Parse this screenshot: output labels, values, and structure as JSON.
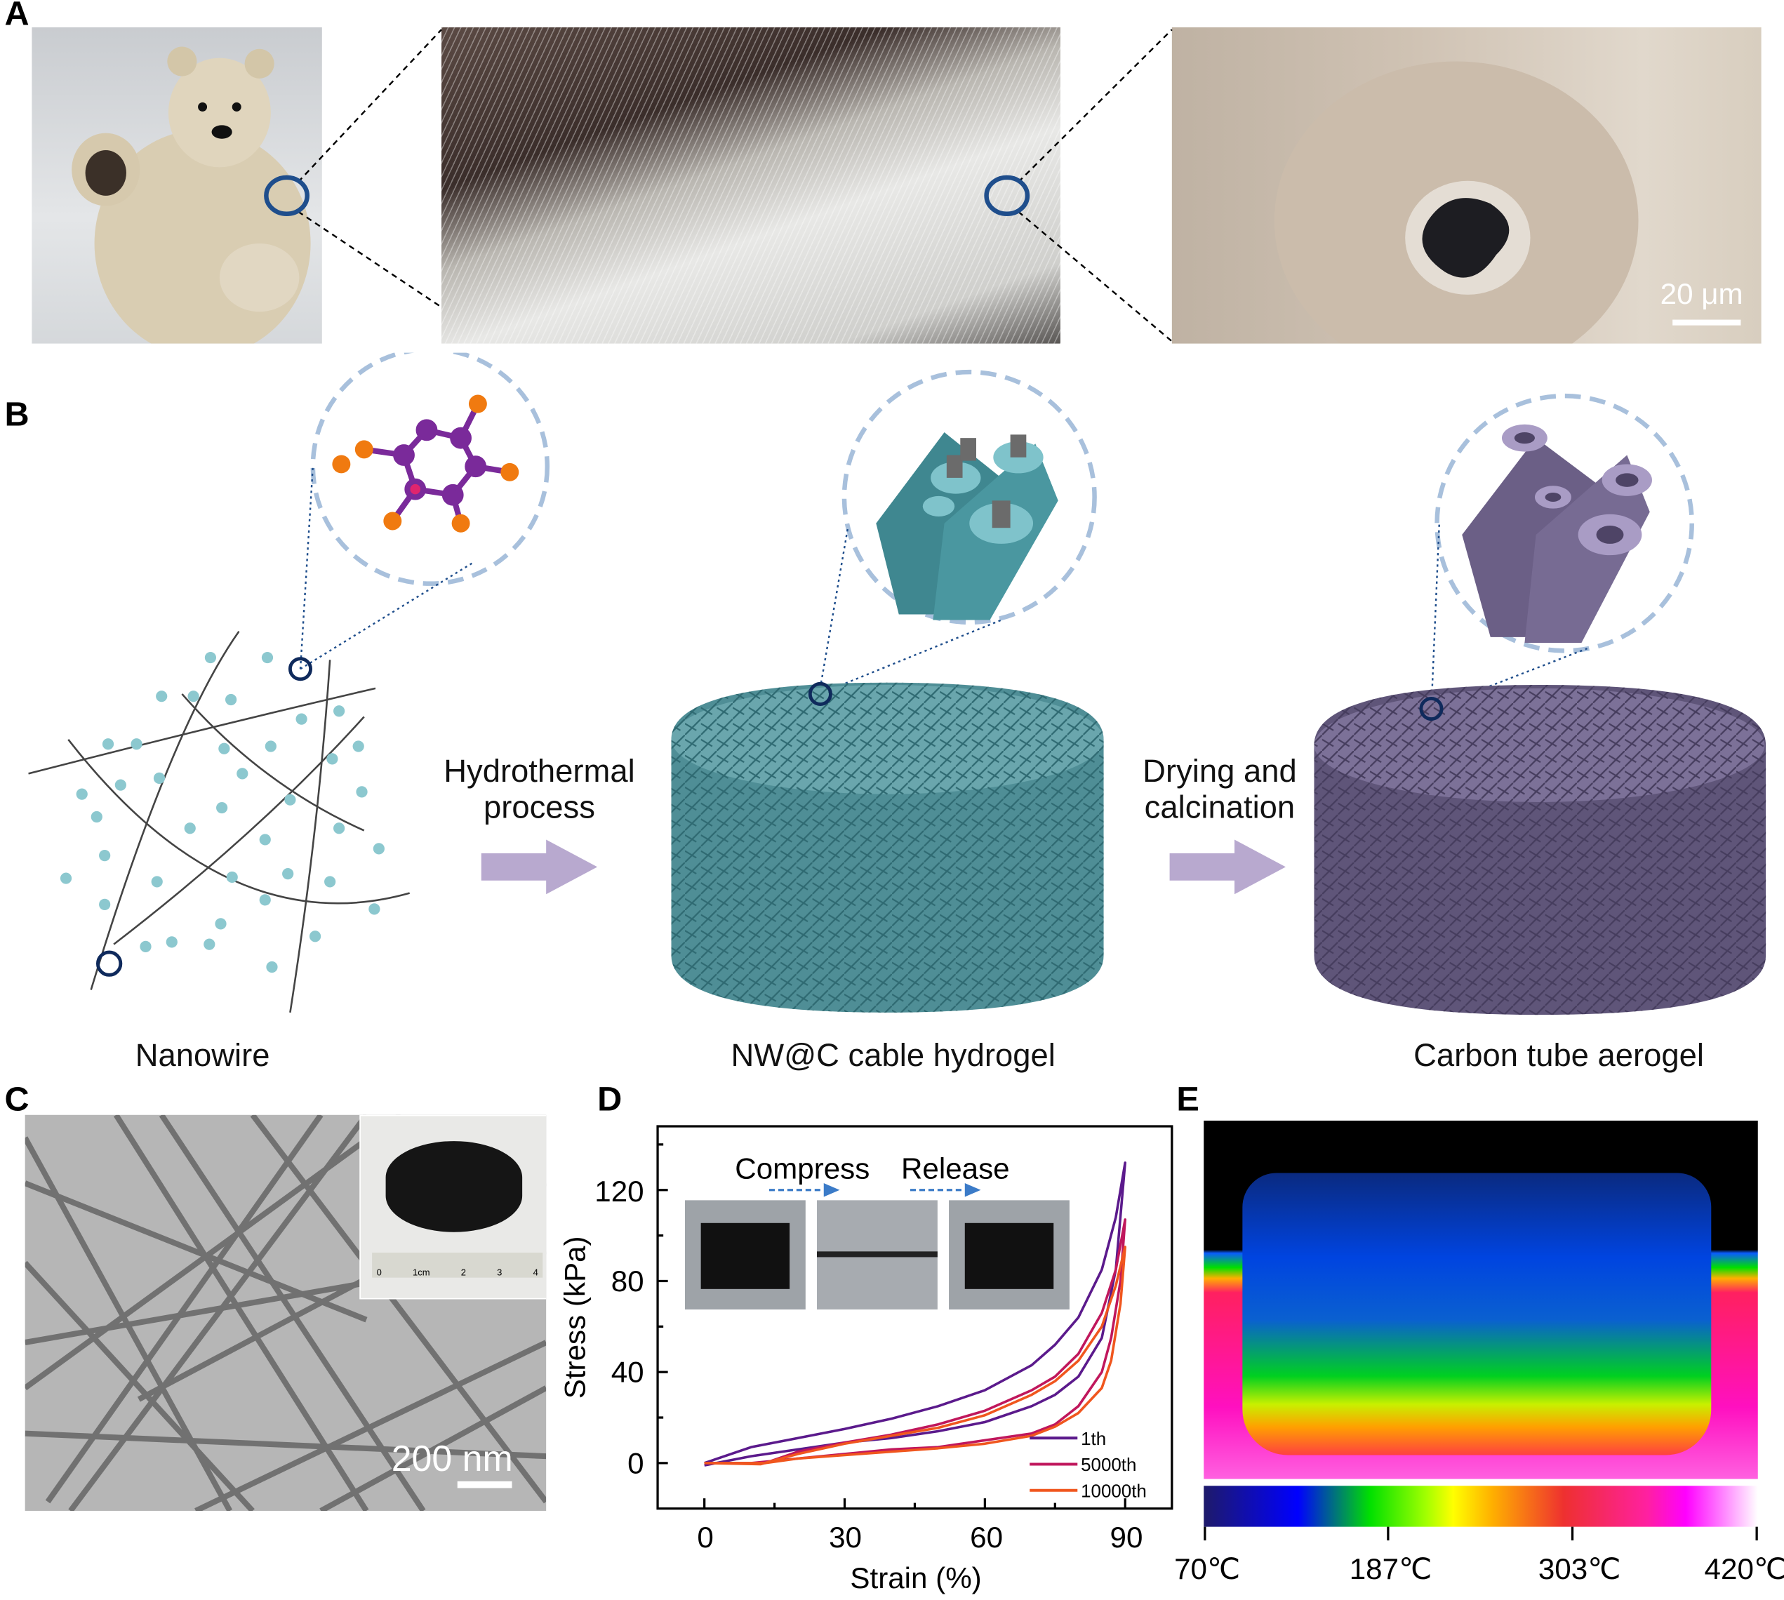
{
  "panels": {
    "a": {
      "label": "A",
      "scale_bar": "20 μm"
    },
    "b": {
      "label": "B",
      "step1_line1": "Hydrothermal",
      "step1_line2": "process",
      "step2_line1": "Drying and",
      "step2_line2": "calcination",
      "stage1": "Nanowire",
      "stage2": "NW@C cable hydrogel",
      "stage3": "Carbon tube aerogel"
    },
    "c": {
      "label": "C",
      "scale_bar": "200 nm",
      "ruler": [
        "0",
        "1cm",
        "2",
        "3",
        "4"
      ]
    },
    "d": {
      "label": "D",
      "compress": "Compress",
      "release": "Release"
    },
    "e": {
      "label": "E",
      "colorbar_ticks": [
        "70℃",
        "187℃",
        "303℃",
        "420℃"
      ]
    }
  },
  "colors": {
    "hydrogel": "#4f8e96",
    "aerogel": "#6b5f86",
    "circle": "#1f4e8c",
    "arrow": "#b8a9cf"
  },
  "chart_data": {
    "type": "line",
    "xlabel": "Strain (%)",
    "ylabel": "Stress (kPa)",
    "xlim": [
      -10,
      100
    ],
    "ylim": [
      -20,
      148
    ],
    "xticks": [
      "0",
      "30",
      "60",
      "90"
    ],
    "yticks": [
      "0",
      "40",
      "80",
      "120"
    ],
    "grid": false,
    "legend": "bottom-right",
    "series": [
      {
        "name": "1th",
        "color": "#5b1a8c",
        "x": [
          0,
          10,
          20,
          30,
          40,
          50,
          60,
          70,
          75,
          80,
          85,
          88,
          90,
          88,
          85,
          80,
          75,
          70,
          60,
          50,
          40,
          30,
          20,
          10,
          0
        ],
        "y": [
          0,
          7,
          11,
          15,
          19.5,
          25,
          32,
          43,
          52,
          64,
          85,
          108,
          132,
          85,
          55,
          38,
          30,
          25,
          18,
          14,
          11,
          9,
          6,
          3,
          -1
        ]
      },
      {
        "name": "5000th",
        "color": "#c0175c",
        "x": [
          0,
          10,
          13,
          20,
          30,
          40,
          50,
          60,
          70,
          75,
          80,
          85,
          88,
          90,
          89,
          87,
          85,
          80,
          75,
          70,
          60,
          50,
          40,
          30,
          20,
          10,
          0
        ],
        "y": [
          0,
          0,
          0,
          5,
          9,
          12.5,
          17,
          23,
          32,
          38,
          48,
          66,
          85,
          107,
          80,
          55,
          40,
          25,
          17,
          13,
          10,
          7,
          6,
          4,
          2,
          0,
          0
        ]
      },
      {
        "name": "10000th",
        "color": "#f0561e",
        "x": [
          0,
          12,
          20,
          30,
          40,
          50,
          60,
          70,
          75,
          80,
          85,
          88,
          90,
          89,
          87,
          85,
          80,
          75,
          70,
          60,
          50,
          40,
          30,
          20,
          13,
          0
        ],
        "y": [
          0,
          -0.5,
          4,
          8.5,
          12,
          15.5,
          21,
          30,
          36,
          45,
          60,
          78,
          95,
          70,
          45,
          33,
          22,
          16,
          12,
          8.5,
          6.5,
          5,
          3.5,
          2,
          0,
          0
        ]
      }
    ]
  }
}
